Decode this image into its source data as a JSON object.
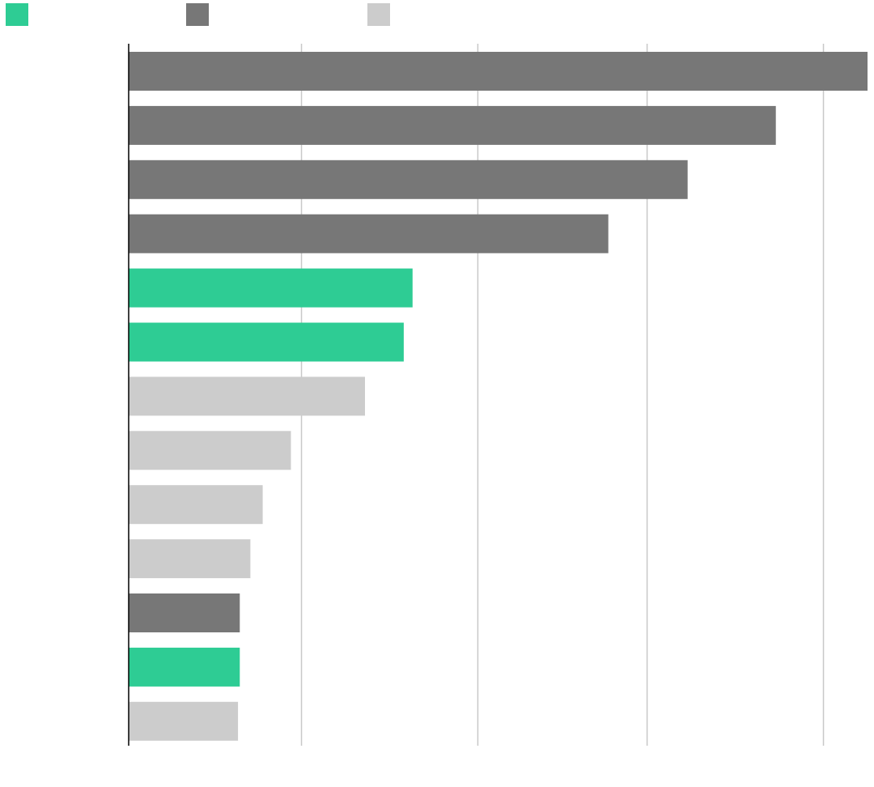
{
  "colors": {
    "green": "#2ecc94",
    "dark_gray": "#777777",
    "light_gray": "#cccccc",
    "gridline": "#c8c8c8",
    "axis": "#000000"
  },
  "chart_data": {
    "type": "bar",
    "orientation": "horizontal",
    "title": "",
    "xlabel": "",
    "ylabel": "",
    "grid": true,
    "legend_position": "top-left",
    "legend": [
      {
        "name": "",
        "color": "#2ecc94"
      },
      {
        "name": "",
        "color": "#777777"
      },
      {
        "name": "",
        "color": "#cccccc"
      }
    ],
    "categories": [
      "",
      "",
      "",
      "",
      "",
      "",
      "",
      "",
      "",
      "",
      "",
      "",
      ""
    ],
    "values": [
      4.19,
      3.67,
      3.17,
      2.72,
      1.61,
      1.56,
      1.34,
      0.92,
      0.76,
      0.69,
      0.63,
      0.63,
      0.62
    ],
    "bar_colors": [
      "#777777",
      "#777777",
      "#777777",
      "#777777",
      "#2ecc94",
      "#2ecc94",
      "#cccccc",
      "#cccccc",
      "#cccccc",
      "#cccccc",
      "#777777",
      "#2ecc94",
      "#cccccc"
    ],
    "xlim": [
      0,
      4.19
    ],
    "gridlines_at": [
      0.98,
      1.98,
      2.94,
      3.94
    ]
  }
}
